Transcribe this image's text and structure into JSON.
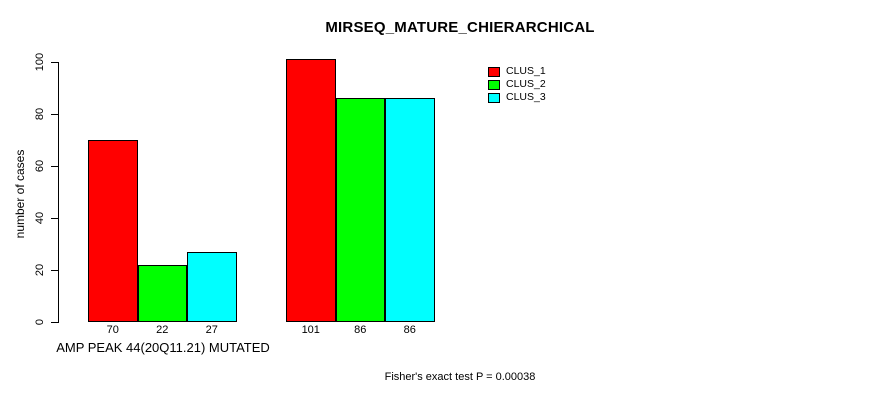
{
  "chart_data": {
    "type": "bar",
    "title": "MIRSEQ_MATURE_CHIERARCHICAL",
    "ylabel": "number of cases",
    "group_labels": [
      "AMP PEAK 44(20Q11.21) MUTATED",
      ""
    ],
    "series": [
      {
        "name": "CLUS_1",
        "color": "#ff0000",
        "values": [
          70,
          101
        ]
      },
      {
        "name": "CLUS_2",
        "color": "#00ff00",
        "values": [
          22,
          86
        ]
      },
      {
        "name": "CLUS_3",
        "color": "#00ffff",
        "values": [
          27,
          86
        ]
      }
    ],
    "yticks": [
      0,
      20,
      40,
      60,
      80,
      100
    ],
    "ylim": [
      0,
      104
    ],
    "grid": false,
    "bar_value_labels_shown": true,
    "legend_position": "top-right",
    "axis_color": "#000000",
    "background_color": "#ffffff"
  },
  "caption": "Fisher's exact test P = 0.00038"
}
